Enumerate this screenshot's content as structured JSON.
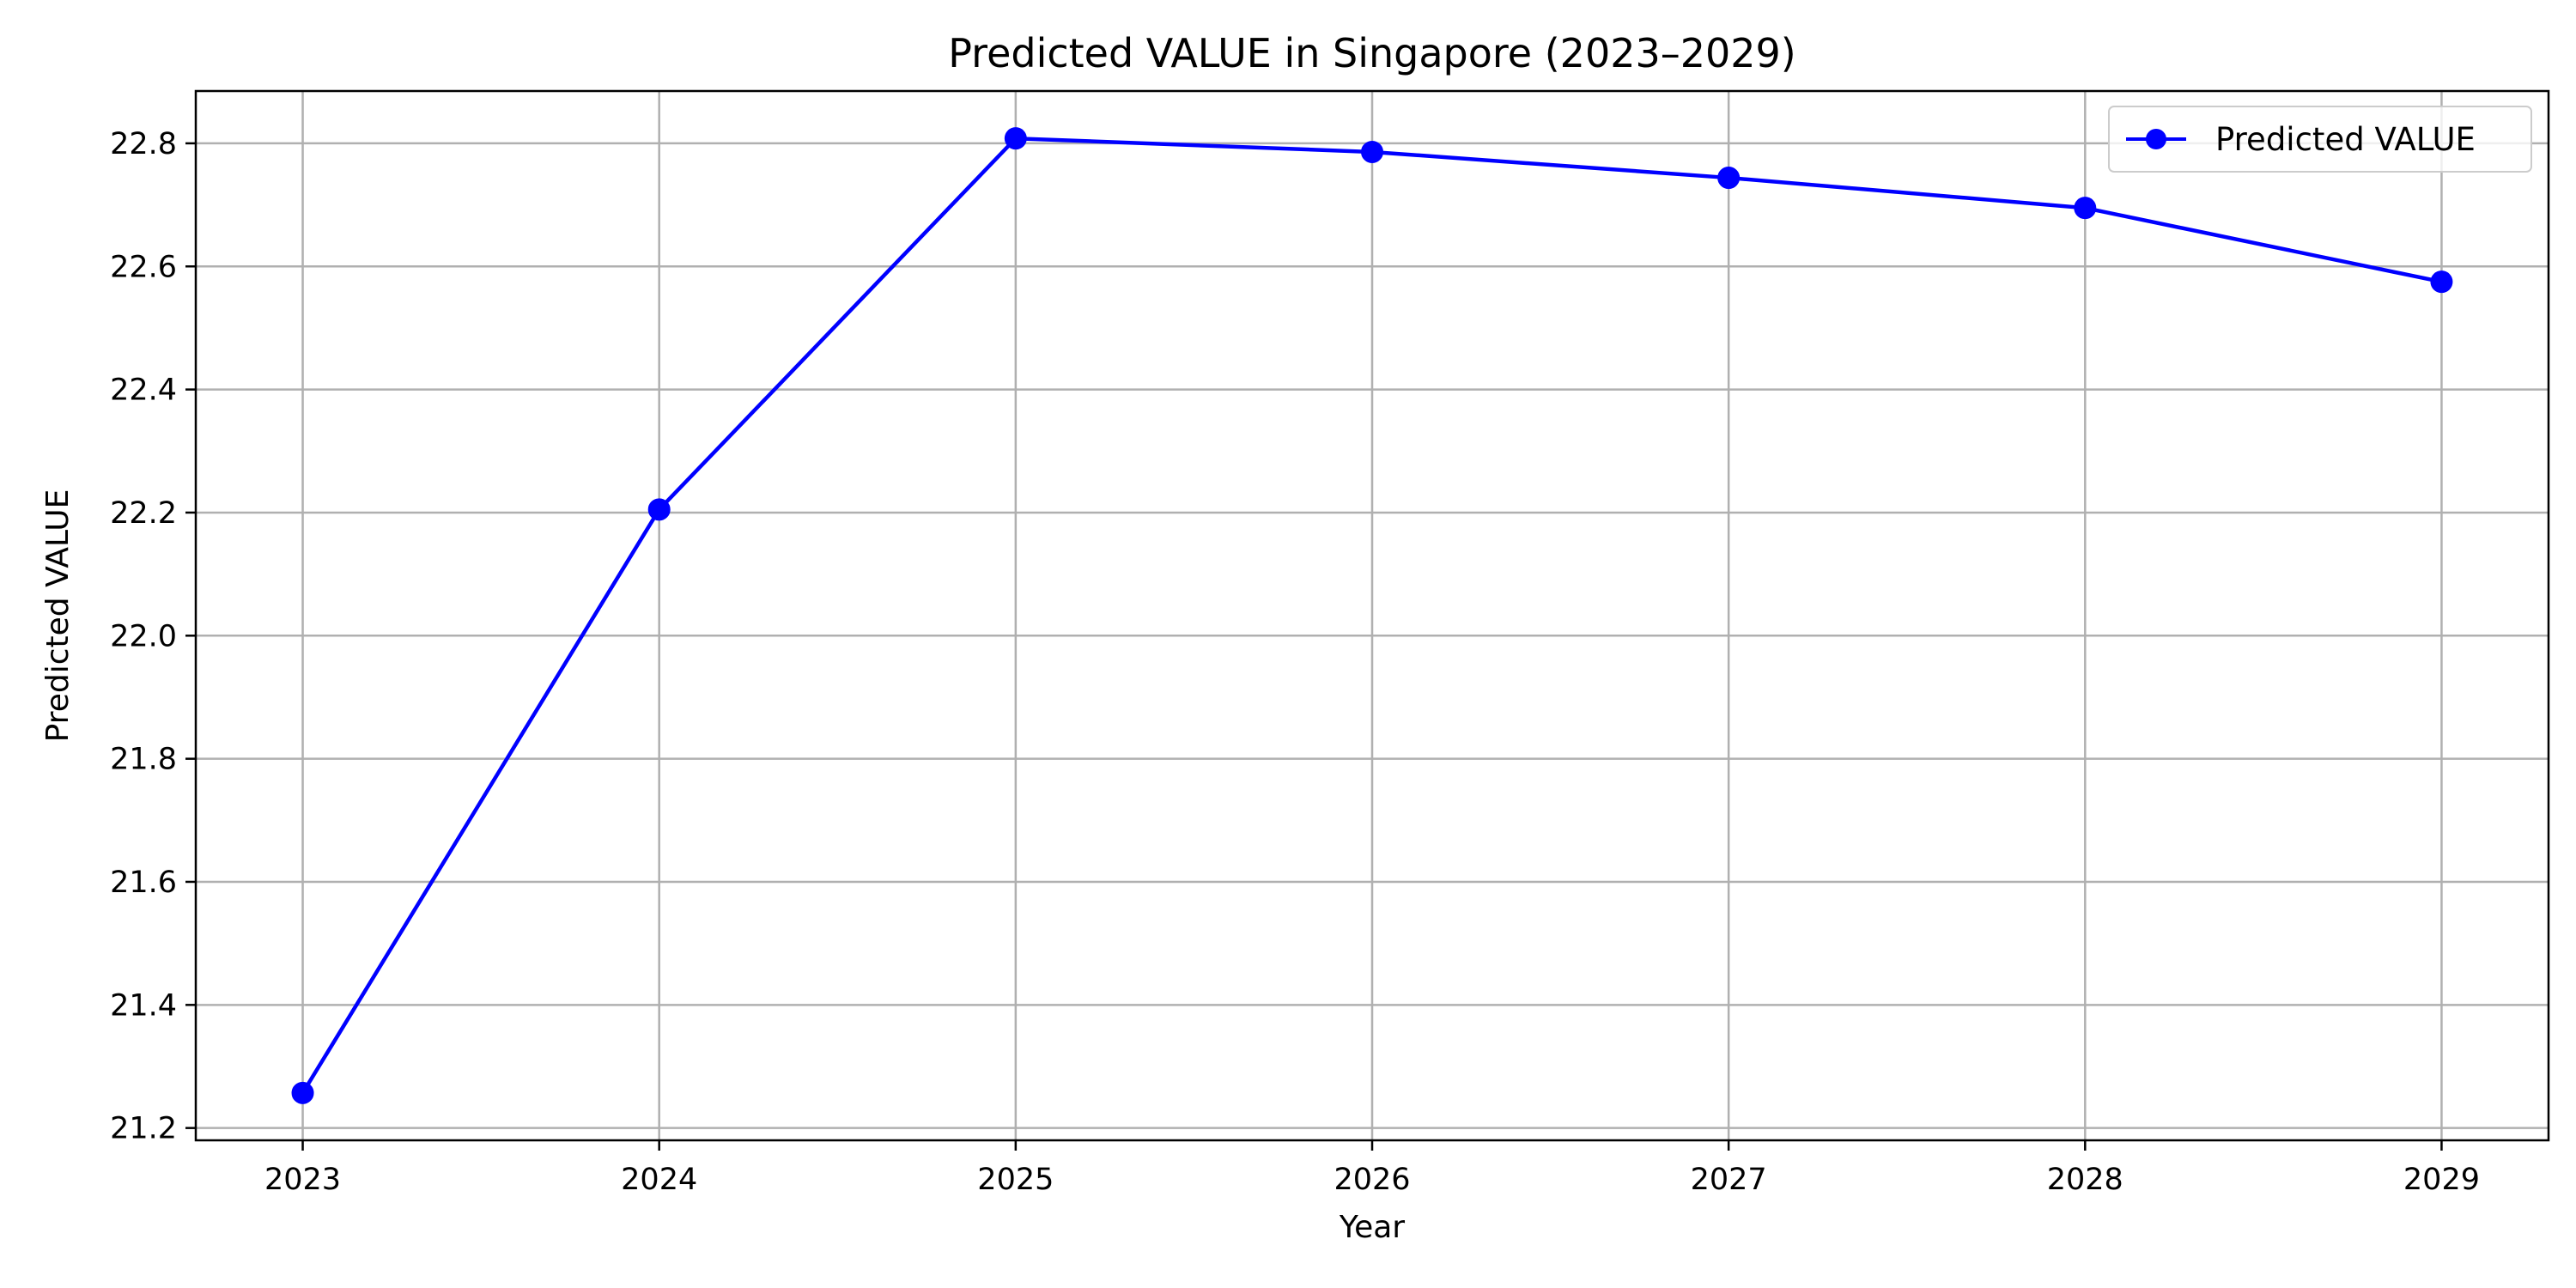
{
  "chart_data": {
    "type": "line",
    "title": "Predicted VALUE in Singapore (2023–2029)",
    "xlabel": "Year",
    "ylabel": "Predicted VALUE",
    "x": [
      2023,
      2024,
      2025,
      2026,
      2027,
      2028,
      2029
    ],
    "x_tick_labels": [
      "2023",
      "2024",
      "2025",
      "2026",
      "2027",
      "2028",
      "2029"
    ],
    "y_ticks": [
      21.2,
      21.4,
      21.6,
      21.8,
      22.0,
      22.2,
      22.4,
      22.6,
      22.8
    ],
    "y_tick_labels": [
      "21.2",
      "21.4",
      "21.6",
      "21.8",
      "22.0",
      "22.2",
      "22.4",
      "22.6",
      "22.8"
    ],
    "xlim": [
      2022.7,
      2029.3
    ],
    "ylim": [
      21.18,
      22.885
    ],
    "grid": true,
    "legend_position": "top-right",
    "series": [
      {
        "name": "Predicted VALUE",
        "color": "#0000ff",
        "marker": "circle",
        "values": [
          21.257,
          22.205,
          22.808,
          22.786,
          22.744,
          22.695,
          22.575
        ]
      }
    ]
  }
}
